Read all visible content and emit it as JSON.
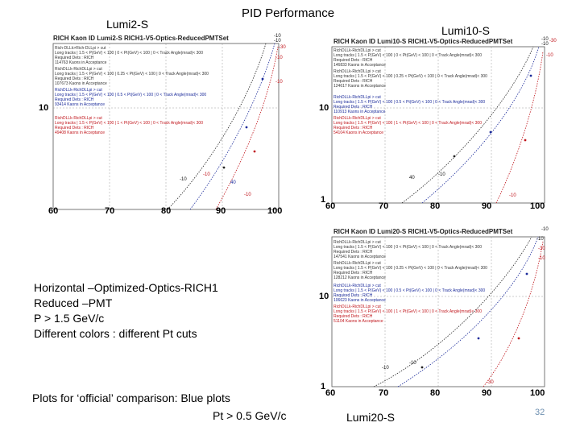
{
  "slide": {
    "title": "PID Performance",
    "page_number": "32",
    "lumi2_label": "Lumi2-S",
    "lumi10_label": "Lumi10-S",
    "lumi20_label": "Lumi20-S",
    "notes": [
      "Horizontal –Optimized-Optics-RICH1",
      "Reduced –PMT",
      "P > 1.5 GeV/c",
      "Different colors :  different Pt cuts"
    ],
    "footer_line1": "Plots for ‘official’ comparison: Blue plots",
    "footer_line2": "Pt > 0.5 GeV/c"
  },
  "plots": [
    {
      "title": "RICH Kaon ID  Lumi2-S  RICH1-V5-Optics-ReducedPMTSet",
      "x_ticks": [
        "60",
        "70",
        "80",
        "90",
        "100"
      ],
      "y_ticks": [
        "10"
      ],
      "legend_blocks": [
        {
          "lines": [
            "Rich-DLLk>Rich-DLLpi > cut",
            "Long tracks | 1.5 < P(GeV) < 100 | 0 < Pt(GeV) < 100 | 0 < Track Angle(mrad)< 300",
            "Required Dets : RICH",
            "114763 Kaons in Acceptance"
          ],
          "color": "#333333"
        },
        {
          "lines": [
            "RichDLLk-RichDLLpi > cut",
            "Long tracks | 1.5 < P(GeV) < 100 | 0.25 < Pt(GeV) < 100 | 0 < Track Angle(mrad)< 300",
            "Required Dets : RICH",
            "107673 Kaons in Acceptance"
          ],
          "color": "#333333"
        },
        {
          "lines": [
            "RichDLLk-RichDLLpi > cut",
            "Long tracks | 1.5 < P(GeV) < 100 | 0.5 < Pt(GeV) < 100 | 0 < Track Angle(mrad)< 300",
            "Required Dets : RICH",
            "93414 Kaons in Acceptance"
          ],
          "color": "#1a2a9a"
        },
        {
          "lines": [
            "RichDLLk-RichDLLpi > cut",
            "Long tracks | 1.5 < P(GeV) < 100 | 1 < Pt(GeV) < 100 | 0 < Track Angle(mrad)< 300",
            "Required Dets : RICH",
            "49408 Kaons in Acceptance"
          ],
          "color": "#c0141a"
        }
      ],
      "curve_labels": [
        "-10",
        "-10",
        "-30",
        "-10",
        "-10",
        "-10",
        "-10",
        "40",
        "-10"
      ]
    },
    {
      "title": "RICH Kaon ID  Lumi10-S  RICH1-V5-Optics-ReducedPMTSet",
      "x_ticks": [
        "60",
        "70",
        "80",
        "90",
        "100"
      ],
      "y_ticks": [
        "1",
        "10"
      ],
      "legend_blocks": [
        {
          "lines": [
            "RichDLLk-RichDLLpi > cut",
            "Long tracks | 1.5 < P(GeV) < 100 | 0 < Pt(GeV) < 100 | 0 < Track Angle(mrad)< 300",
            "Required Dets : RICH",
            "146833 Kaons in Acceptance"
          ],
          "color": "#333333"
        },
        {
          "lines": [
            "RichDLLk-RichDLLpi > cut",
            "Long tracks | 1.5 < P(GeV) < 100 | 0.25 < Pt(GeV) < 100 | 0 < Track Angle(mrad)< 300",
            "Required Dets : RICH",
            "124617 Kaons in Acceptance"
          ],
          "color": "#333333"
        },
        {
          "lines": [
            "RichDLLk-RichDLLpi > cut",
            "Long tracks | 1.5 < P(GeV) < 100 | 0.5 < Pt(GeV) < 100 | 0 < Track Angle(mrad)< 300",
            "Required Dets : RICH",
            "110913 Kaons in Acceptance"
          ],
          "color": "#1a2a9a"
        },
        {
          "lines": [
            "RichDLLk-RichDLLpi > cut",
            "Long tracks | 1.5 < P(GeV) < 100 | 1 < Pt(GeV) < 100 | 0 < Track Angle(mrad)< 300",
            "Required Dets : RICH",
            "54104 Kaons in Acceptance"
          ],
          "color": "#c0141a"
        }
      ],
      "curve_labels": [
        "-10",
        "-10",
        "-30",
        "-10",
        "40",
        "-10",
        "-10"
      ]
    },
    {
      "title": "RICH Kaon ID  Lumi20-S  RICH1-V5-Optics-ReducedPMTSet",
      "x_ticks": [
        "60",
        "70",
        "80",
        "90",
        "100"
      ],
      "y_ticks": [
        "1",
        "10"
      ],
      "legend_blocks": [
        {
          "lines": [
            "RichDLLk-RichDLLpi > cut",
            "Long tracks | 1.5 < P(GeV) < 100 | 0 < Pt(GeV) < 100 | 0 < Track Angle(mrad)< 300",
            "Required Dets : RICH",
            "147541 Kaons in Acceptance"
          ],
          "color": "#333333"
        },
        {
          "lines": [
            "RichDLLk-RichDLLpi > cut",
            "Long tracks | 1.5 < P(GeV) < 100 | 0.25 < Pt(GeV) < 100 | 0 < Track Angle(mrad)< 300",
            "Required Dets : RICH",
            "128212 Kaons in Acceptance"
          ],
          "color": "#333333"
        },
        {
          "lines": [
            "RichDLLk-RichDLLpi > cut",
            "Long tracks | 1.5 < P(GeV) < 100 | 0.5 < Pt(GeV) < 100 | 0 < Track Angle(mrad)< 300",
            "Required Dets : RICH",
            "106623 Kaons in Acceptance"
          ],
          "color": "#1a2a9a"
        },
        {
          "lines": [
            "RichDLLk-RichDLLpi > cut",
            "Long tracks | 1.5 < P(GeV) < 100 | 1 < Pt(GeV) < 100 | 0 < Track Angle(mrad)< 300",
            "Required Dets : RICH",
            "51104 Kaons in Acceptance"
          ],
          "color": "#c0141a"
        }
      ],
      "curve_labels": [
        "-10",
        "-10",
        "-30",
        "-10",
        "-10",
        "-10",
        "-30"
      ]
    }
  ],
  "colors": {
    "blue_series": "#1a2a9a",
    "red_series": "#c0141a",
    "black_series": "#222222",
    "grid": "#9a9a9a",
    "slide_number": "#6d8fb0"
  }
}
